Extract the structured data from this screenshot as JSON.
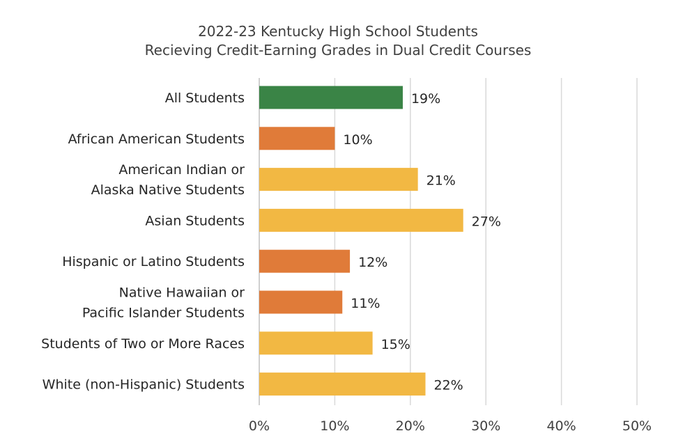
{
  "chart_data": {
    "type": "bar",
    "orientation": "horizontal",
    "title": [
      "2022-23 Kentucky High School Students",
      "Recieving Credit-Earning Grades in Dual Credit Courses"
    ],
    "categories": [
      [
        "All Students"
      ],
      [
        "African American Students"
      ],
      [
        "American Indian or",
        "Alaska Native Students"
      ],
      [
        "Asian Students"
      ],
      [
        "Hispanic or Latino Students"
      ],
      [
        "Native Hawaiian or",
        "Pacific Islander Students"
      ],
      [
        "Students of Two or More Races"
      ],
      [
        "White (non-Hispanic) Students"
      ]
    ],
    "values": [
      19,
      10,
      21,
      27,
      12,
      11,
      15,
      22
    ],
    "data_labels": [
      "19%",
      "10%",
      "21%",
      "27%",
      "12%",
      "11%",
      "15%",
      "22%"
    ],
    "bar_colors": [
      "#3a8446",
      "#e07b39",
      "#f2b843",
      "#f2b843",
      "#e07b39",
      "#e07b39",
      "#f2b843",
      "#f2b843"
    ],
    "xlim": [
      0,
      50
    ],
    "xticks": [
      0,
      10,
      20,
      30,
      40,
      50
    ],
    "xtick_labels": [
      "0%",
      "10%",
      "20%",
      "30%",
      "40%",
      "50%"
    ],
    "xlabel": "",
    "ylabel": "",
    "grid": "vertical",
    "legend": "none"
  }
}
